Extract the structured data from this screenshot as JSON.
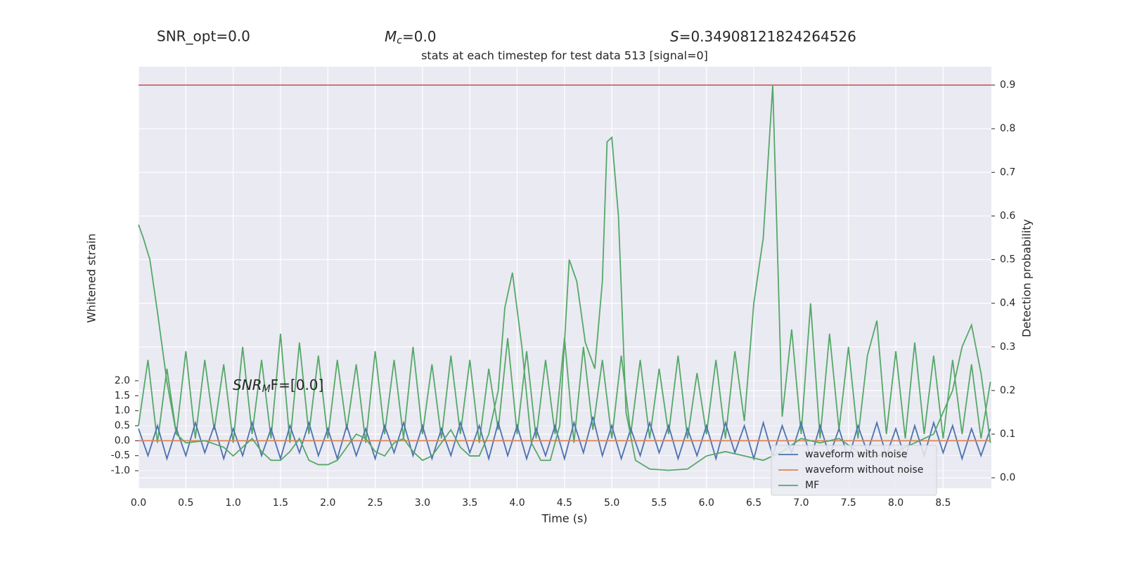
{
  "chart_data": {
    "type": "line",
    "title": "stats at each timestep for test data 513 [signal=0]",
    "annotations": {
      "snr_opt": "SNR_opt=0.0",
      "mc": {
        "symbol": "M",
        "subscript": "c",
        "text": "=0.0"
      },
      "s": {
        "symbol": "S",
        "text": "=0.34908121824264526"
      },
      "snr_mf": {
        "symbol": "SNR",
        "subscript": "M",
        "text": "F=[0.0]"
      }
    },
    "xlabel": "Time (s)",
    "ylabel": "Whitened strain",
    "y2label": "Detection probability",
    "xlim": [
      0,
      9.01
    ],
    "ylim": [
      -1.585,
      12.47
    ],
    "y2lim": [
      -0.024,
      0.942
    ],
    "xticks": [
      {
        "value": 0,
        "label": "0.0"
      },
      0.5,
      {
        "value": 1,
        "label": "1.0"
      },
      1.5,
      {
        "value": 2,
        "label": "2.0"
      },
      2.5,
      {
        "value": 3,
        "label": "3.0"
      },
      3.5,
      {
        "value": 4,
        "label": "4.0"
      },
      4.5,
      {
        "value": 5,
        "label": "5.0"
      },
      5.5,
      {
        "value": 6,
        "label": "6.0"
      },
      6.5,
      {
        "value": 7,
        "label": "7.0"
      },
      7.5,
      {
        "value": 8,
        "label": "8.0"
      },
      8.5
    ],
    "yticks": [
      {
        "value": -1,
        "label": "-1.0"
      },
      -0.5,
      {
        "value": 0,
        "label": "0.0"
      },
      0.5,
      {
        "value": 1,
        "label": "1.0"
      },
      1.5,
      {
        "value": 2,
        "label": "2.0"
      }
    ],
    "y2ticks": [
      {
        "value": 0,
        "label": "0.0"
      },
      0.1,
      0.2,
      0.3,
      0.4,
      0.5,
      0.6,
      0.7,
      0.8,
      0.9
    ],
    "grid": true,
    "legend": "lower right",
    "hlines": [
      {
        "value": 0.9,
        "axis": "y2",
        "color": "#c44e52"
      }
    ],
    "series": [
      {
        "name": "waveform with noise",
        "color": "#4c72b0",
        "axis": "y",
        "x": [
          0,
          0.1,
          0.2,
          0.3,
          0.4,
          0.5,
          0.6,
          0.7,
          0.8,
          0.9,
          1.0,
          1.1,
          1.2,
          1.3,
          1.4,
          1.5,
          1.6,
          1.7,
          1.8,
          1.9,
          2.0,
          2.1,
          2.2,
          2.3,
          2.4,
          2.5,
          2.6,
          2.7,
          2.8,
          2.9,
          3.0,
          3.1,
          3.2,
          3.3,
          3.4,
          3.5,
          3.6,
          3.7,
          3.8,
          3.9,
          4.0,
          4.1,
          4.2,
          4.3,
          4.4,
          4.5,
          4.6,
          4.7,
          4.8,
          4.9,
          5.0,
          5.1,
          5.2,
          5.3,
          5.4,
          5.5,
          5.6,
          5.7,
          5.8,
          5.9,
          6.0,
          6.1,
          6.2,
          6.3,
          6.4,
          6.5,
          6.6,
          6.7,
          6.8,
          6.9,
          7.0,
          7.1,
          7.2,
          7.3,
          7.4,
          7.5,
          7.6,
          7.7,
          7.8,
          7.9,
          8.0,
          8.1,
          8.2,
          8.3,
          8.4,
          8.5,
          8.6,
          8.7,
          8.8,
          8.9,
          9.0
        ],
        "values": [
          0.4,
          -0.5,
          0.5,
          -0.6,
          0.4,
          -0.5,
          0.6,
          -0.4,
          0.5,
          -0.6,
          0.4,
          -0.5,
          0.6,
          -0.5,
          0.4,
          -0.6,
          0.5,
          -0.4,
          0.6,
          -0.5,
          0.4,
          -0.6,
          0.5,
          -0.5,
          0.4,
          -0.6,
          0.5,
          -0.4,
          0.6,
          -0.5,
          0.5,
          -0.6,
          0.4,
          -0.5,
          0.6,
          -0.4,
          0.5,
          -0.6,
          0.6,
          -0.5,
          0.5,
          -0.6,
          0.4,
          -0.5,
          0.5,
          -0.6,
          0.6,
          -0.4,
          0.8,
          -0.5,
          0.5,
          -0.6,
          0.4,
          -0.5,
          0.6,
          -0.4,
          0.5,
          -0.6,
          0.4,
          -0.5,
          0.5,
          -0.6,
          0.6,
          -0.4,
          0.5,
          -0.6,
          0.6,
          -0.5,
          0.5,
          -0.4,
          0.6,
          -0.6,
          0.5,
          -0.5,
          0.4,
          -0.6,
          0.5,
          -0.4,
          0.6,
          -0.5,
          0.4,
          -0.6,
          0.5,
          -0.5,
          0.6,
          -0.4,
          0.5,
          -0.6,
          0.4,
          -0.5,
          0.4
        ]
      },
      {
        "name": "waveform without noise",
        "color": "#dd8452",
        "axis": "y",
        "x": [
          0,
          9.0
        ],
        "values": [
          0,
          0
        ]
      },
      {
        "name": "MF",
        "color": "#55a868",
        "axis": "y2",
        "x": [
          0,
          0.05,
          0.12,
          0.2,
          0.3,
          0.4,
          0.5,
          0.7,
          0.9,
          1.0,
          1.1,
          1.2,
          1.3,
          1.4,
          1.5,
          1.6,
          1.7,
          1.8,
          1.9,
          2.0,
          2.1,
          2.2,
          2.3,
          2.4,
          2.5,
          2.6,
          2.7,
          2.8,
          2.9,
          3.0,
          3.1,
          3.2,
          3.3,
          3.4,
          3.5,
          3.6,
          3.7,
          3.8,
          3.87,
          3.95,
          4.05,
          4.15,
          4.25,
          4.35,
          4.45,
          4.55,
          4.63,
          4.72,
          4.82,
          4.9,
          4.95,
          5.0,
          5.07,
          5.15,
          5.25,
          5.4,
          5.6,
          5.8,
          6.0,
          6.2,
          6.4,
          6.6,
          6.8,
          7.0,
          7.2,
          7.4,
          7.6,
          7.8,
          8.0,
          8.2,
          8.4,
          8.6,
          8.7,
          8.8,
          8.9,
          9.0
        ],
        "values": [
          0.58,
          0.55,
          0.5,
          0.38,
          0.22,
          0.1,
          0.08,
          0.085,
          0.07,
          0.05,
          0.07,
          0.09,
          0.06,
          0.04,
          0.04,
          0.06,
          0.09,
          0.04,
          0.03,
          0.03,
          0.04,
          0.07,
          0.1,
          0.09,
          0.06,
          0.05,
          0.08,
          0.09,
          0.06,
          0.04,
          0.05,
          0.08,
          0.11,
          0.07,
          0.05,
          0.05,
          0.1,
          0.2,
          0.39,
          0.47,
          0.3,
          0.08,
          0.04,
          0.04,
          0.12,
          0.5,
          0.45,
          0.31,
          0.25,
          0.45,
          0.77,
          0.78,
          0.6,
          0.15,
          0.04,
          0.02,
          0.017,
          0.02,
          0.05,
          0.06,
          0.05,
          0.04,
          0.06,
          0.09,
          0.08,
          0.09,
          0.06,
          0.05,
          0.06,
          0.08,
          0.1,
          0.2,
          0.3,
          0.35,
          0.24,
          0.08
        ]
      },
      {
        "color": "#55a868",
        "axis": "y2",
        "x": [
          0,
          0.1,
          0.2,
          0.3,
          0.4,
          0.5,
          0.6,
          0.7,
          0.8,
          0.9,
          1.0,
          1.1,
          1.2,
          1.3,
          1.4,
          1.5,
          1.6,
          1.7,
          1.8,
          1.9,
          2.0,
          2.1,
          2.2,
          2.3,
          2.4,
          2.5,
          2.6,
          2.7,
          2.8,
          2.9,
          3.0,
          3.1,
          3.2,
          3.3,
          3.4,
          3.5,
          3.6,
          3.7,
          3.8,
          3.9,
          4.0,
          4.1,
          4.2,
          4.3,
          4.4,
          4.5,
          4.6,
          4.7,
          4.8,
          4.9,
          5.0,
          5.1,
          5.2,
          5.3,
          5.4,
          5.5,
          5.6,
          5.7,
          5.8,
          5.9,
          6.0,
          6.1,
          6.2,
          6.3,
          6.4,
          6.5,
          6.6,
          6.7,
          6.8,
          6.9,
          7.0,
          7.1,
          7.2,
          7.3,
          7.4,
          7.5,
          7.6,
          7.7,
          7.8,
          7.9,
          8.0,
          8.1,
          8.2,
          8.3,
          8.4,
          8.5,
          8.6,
          8.7,
          8.8,
          8.9,
          9.0
        ],
        "values": [
          0.12,
          0.27,
          0.08,
          0.25,
          0.1,
          0.29,
          0.09,
          0.27,
          0.11,
          0.26,
          0.08,
          0.3,
          0.1,
          0.27,
          0.09,
          0.33,
          0.08,
          0.31,
          0.1,
          0.28,
          0.09,
          0.27,
          0.11,
          0.26,
          0.08,
          0.29,
          0.1,
          0.27,
          0.09,
          0.3,
          0.1,
          0.26,
          0.09,
          0.28,
          0.1,
          0.27,
          0.08,
          0.25,
          0.11,
          0.32,
          0.1,
          0.29,
          0.09,
          0.27,
          0.1,
          0.32,
          0.08,
          0.3,
          0.11,
          0.27,
          0.09,
          0.28,
          0.1,
          0.27,
          0.09,
          0.25,
          0.1,
          0.28,
          0.09,
          0.24,
          0.1,
          0.27,
          0.09,
          0.29,
          0.13,
          0.4,
          0.55,
          0.9,
          0.14,
          0.34,
          0.1,
          0.4,
          0.09,
          0.33,
          0.11,
          0.3,
          0.09,
          0.28,
          0.36,
          0.1,
          0.29,
          0.09,
          0.31,
          0.1,
          0.28,
          0.09,
          0.27,
          0.1,
          0.26,
          0.09,
          0.22
        ]
      }
    ]
  }
}
